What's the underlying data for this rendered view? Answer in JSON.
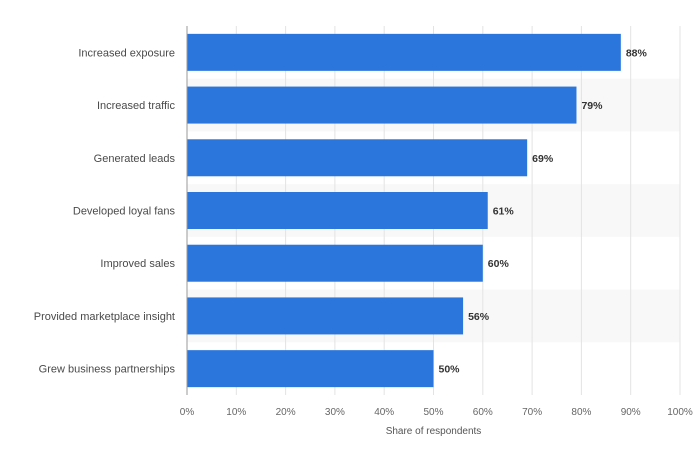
{
  "chart_data": {
    "type": "bar",
    "orientation": "horizontal",
    "categories": [
      "Increased exposure",
      "Increased traffic",
      "Generated leads",
      "Developed loyal fans",
      "Improved sales",
      "Provided marketplace insight",
      "Grew business partnerships"
    ],
    "values": [
      88,
      79,
      69,
      61,
      60,
      56,
      50
    ],
    "value_labels": [
      "88%",
      "79%",
      "69%",
      "61%",
      "60%",
      "56%",
      "50%"
    ],
    "xlabel": "Share of respondents",
    "xlim": [
      0,
      100
    ],
    "xticks": [
      0,
      10,
      20,
      30,
      40,
      50,
      60,
      70,
      80,
      90,
      100
    ],
    "xtick_labels": [
      "0%",
      "10%",
      "20%",
      "30%",
      "40%",
      "50%",
      "60%",
      "70%",
      "80%",
      "90%",
      "100%"
    ],
    "grid": true,
    "bar_color": "#2a76dd",
    "band_color": "#f8f8f8",
    "grid_color": "#e3e3e3"
  }
}
